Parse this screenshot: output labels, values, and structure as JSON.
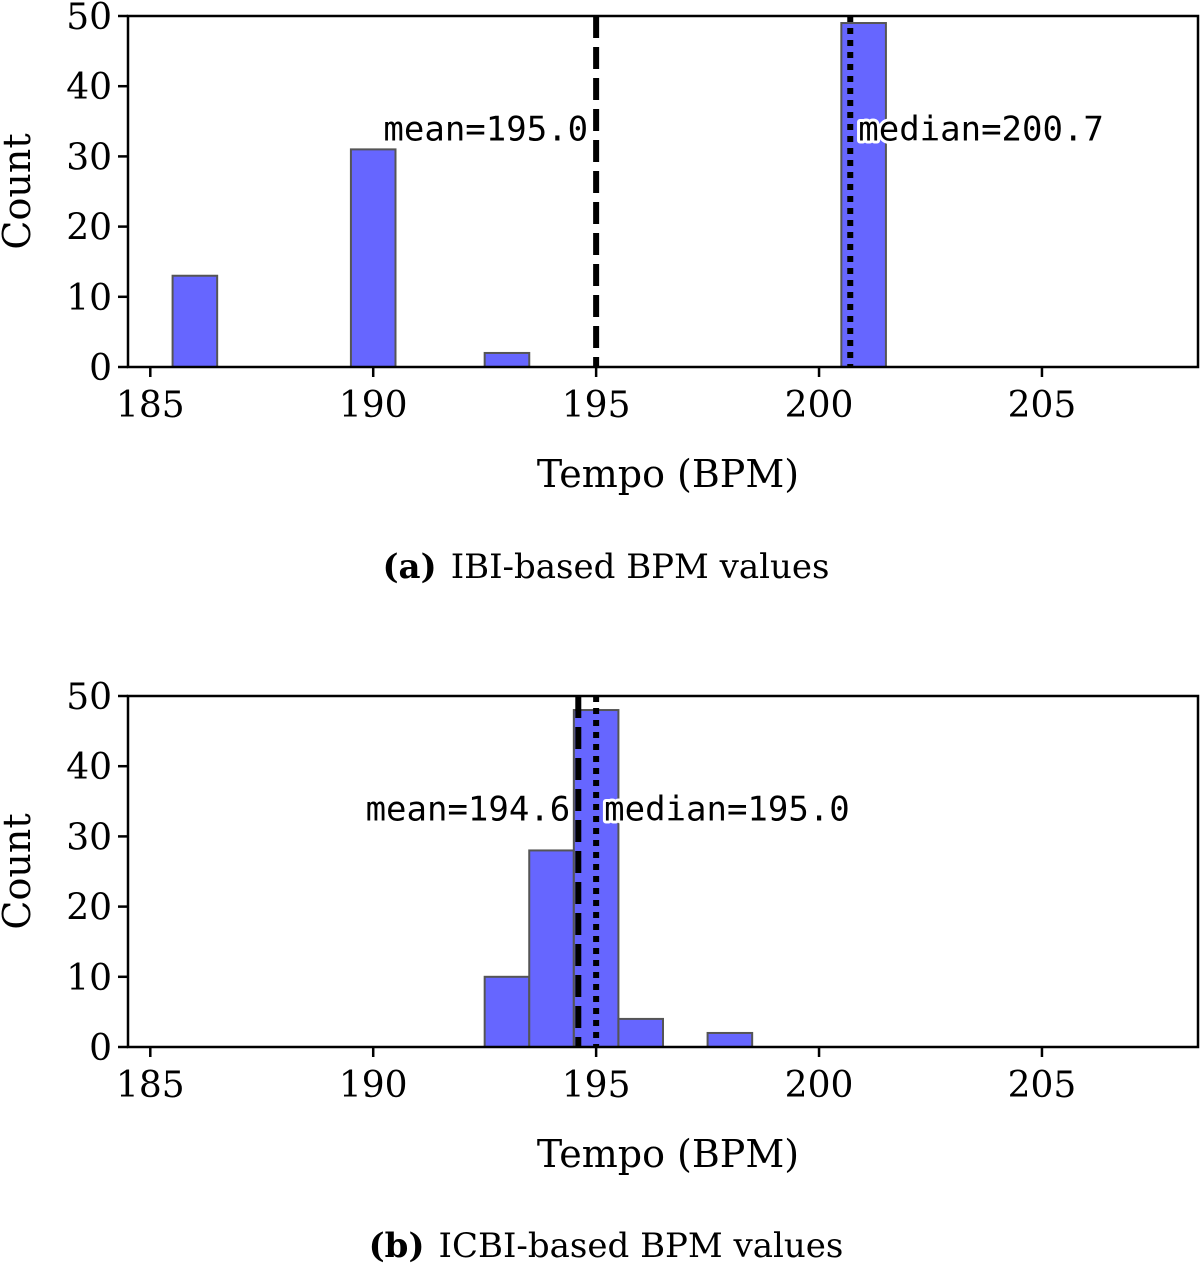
{
  "charts": [
    {
      "caption_tag": "(a)",
      "caption_text": "IBI-based BPM values",
      "chart_data": {
        "type": "bar",
        "subtype": "histogram",
        "xlabel": "Tempo (BPM)",
        "ylabel": "Count",
        "xlim": [
          184.5,
          208.5
        ],
        "ylim": [
          0,
          50
        ],
        "xticks": [
          "185",
          "190",
          "195",
          "200",
          "205"
        ],
        "yticks": [
          "0",
          "10",
          "20",
          "30",
          "40",
          "50"
        ],
        "bar_color": "#6666ff",
        "bins": [
          {
            "start": 185.5,
            "end": 186.5,
            "count": 13
          },
          {
            "start": 189.5,
            "end": 190.5,
            "count": 31
          },
          {
            "start": 192.5,
            "end": 193.5,
            "count": 2
          },
          {
            "start": 200.5,
            "end": 201.5,
            "count": 49
          }
        ],
        "mean": 195.0,
        "median": 200.7,
        "mean_label": "mean=195.0",
        "median_label": "median=200.7",
        "mean_label_anchor": "end",
        "median_label_anchor": "start",
        "label_y": 34
      }
    },
    {
      "caption_tag": "(b)",
      "caption_text": "ICBI-based BPM values",
      "chart_data": {
        "type": "bar",
        "subtype": "histogram",
        "xlabel": "Tempo (BPM)",
        "ylabel": "Count",
        "xlim": [
          184.5,
          208.5
        ],
        "ylim": [
          0,
          50
        ],
        "xticks": [
          "185",
          "190",
          "195",
          "200",
          "205"
        ],
        "yticks": [
          "0",
          "10",
          "20",
          "30",
          "40",
          "50"
        ],
        "bar_color": "#6666ff",
        "bins": [
          {
            "start": 192.5,
            "end": 193.5,
            "count": 10
          },
          {
            "start": 193.5,
            "end": 194.5,
            "count": 28
          },
          {
            "start": 194.5,
            "end": 195.5,
            "count": 48
          },
          {
            "start": 195.5,
            "end": 196.5,
            "count": 4
          },
          {
            "start": 197.5,
            "end": 198.5,
            "count": 2
          }
        ],
        "mean": 194.6,
        "median": 195.0,
        "mean_label": "mean=194.6",
        "median_label": "median=195.0",
        "mean_label_anchor": "end",
        "median_label_anchor": "start",
        "label_y": 34
      }
    }
  ]
}
